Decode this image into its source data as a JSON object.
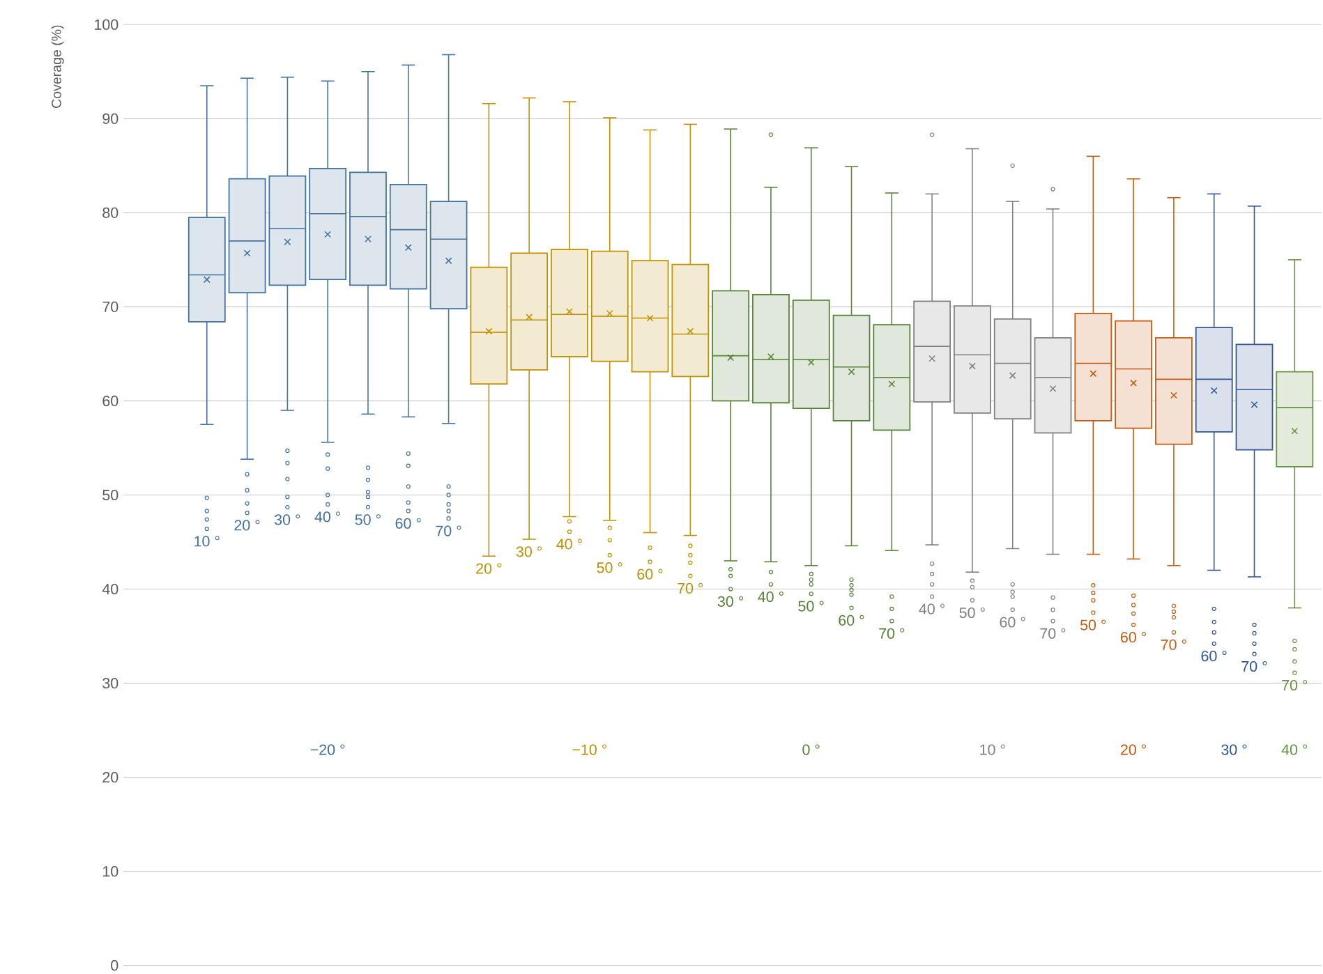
{
  "chart_data": {
    "type": "box",
    "ylabel": "Coverage (%)",
    "ylim": [
      0,
      100
    ],
    "yticks": [
      0,
      10,
      20,
      30,
      40,
      50,
      60,
      70,
      80,
      90,
      100
    ],
    "grid": "y",
    "categories": [
      "10 °",
      "20 °",
      "30 °",
      "40 °",
      "50 °",
      "60 °",
      "70 °",
      "20 °",
      "30 °",
      "40 °",
      "50 °",
      "60 °",
      "70 °",
      "30 °",
      "40 °",
      "50 °",
      "60 °",
      "70 °",
      "40 °",
      "50 °",
      "60 °",
      "70 °",
      "50 °",
      "60 °",
      "70 °",
      "60 °",
      "70 °",
      "70 °"
    ],
    "series": [
      {
        "name": "−20 °",
        "color": "#41719c",
        "boxes": [
          {
            "low": 57.5,
            "q1": 68.4,
            "median": 73.4,
            "q3": 79.5,
            "high": 93.5,
            "mean": 72.9,
            "outliers": [
              49.7,
              48.3,
              47.4,
              46.4
            ]
          },
          {
            "low": 53.8,
            "q1": 71.5,
            "median": 77.0,
            "q3": 83.6,
            "high": 94.3,
            "mean": 75.7,
            "outliers": [
              52.2,
              50.5,
              49.1,
              48.1
            ]
          },
          {
            "low": 59.0,
            "q1": 72.3,
            "median": 78.3,
            "q3": 83.9,
            "high": 94.4,
            "mean": 76.9,
            "outliers": [
              54.7,
              53.4,
              51.7,
              49.8,
              48.7
            ]
          },
          {
            "low": 55.6,
            "q1": 72.9,
            "median": 79.9,
            "q3": 84.7,
            "high": 94.0,
            "mean": 77.7,
            "outliers": [
              54.3,
              52.8,
              50.0,
              49.0
            ]
          },
          {
            "low": 58.6,
            "q1": 72.3,
            "median": 79.6,
            "q3": 84.3,
            "high": 95.0,
            "mean": 77.2,
            "outliers": [
              52.9,
              51.6,
              50.3,
              49.8,
              48.7
            ]
          },
          {
            "low": 58.3,
            "q1": 71.9,
            "median": 78.2,
            "q3": 83.0,
            "high": 95.7,
            "mean": 76.3,
            "outliers": [
              54.4,
              53.1,
              50.9,
              49.2,
              48.3
            ]
          },
          {
            "low": 57.6,
            "q1": 69.8,
            "median": 77.2,
            "q3": 81.2,
            "high": 96.8,
            "mean": 74.9,
            "outliers": [
              50.9,
              50.0,
              49.0,
              48.3,
              47.5
            ]
          },
          null,
          null,
          null,
          null,
          null,
          null,
          null,
          null,
          null,
          null,
          null,
          null,
          null,
          null,
          null,
          null,
          null,
          null,
          null,
          null,
          null
        ]
      },
      {
        "name": "−10 °",
        "color": "#bf9000",
        "boxes": [
          null,
          null,
          null,
          null,
          null,
          null,
          null,
          {
            "low": 43.5,
            "q1": 61.8,
            "median": 67.3,
            "q3": 74.2,
            "high": 91.6,
            "mean": 67.4
          },
          {
            "low": 45.3,
            "q1": 63.3,
            "median": 68.6,
            "q3": 75.7,
            "high": 92.2,
            "mean": 68.9
          },
          {
            "low": 47.7,
            "q1": 64.7,
            "median": 69.2,
            "q3": 76.1,
            "high": 91.8,
            "mean": 69.5,
            "outliers": [
              47.2,
              46.1
            ]
          },
          {
            "low": 47.3,
            "q1": 64.2,
            "median": 69.0,
            "q3": 75.9,
            "high": 90.1,
            "mean": 69.3,
            "outliers": [
              46.5,
              45.2,
              43.6
            ]
          },
          {
            "low": 46.0,
            "q1": 63.1,
            "median": 68.8,
            "q3": 74.9,
            "high": 88.8,
            "mean": 68.8,
            "outliers": [
              44.4,
              42.9
            ]
          },
          {
            "low": 45.7,
            "q1": 62.6,
            "median": 67.1,
            "q3": 74.5,
            "high": 89.4,
            "mean": 67.4,
            "outliers": [
              44.6,
              43.6,
              42.8,
              41.4
            ]
          },
          null,
          null,
          null,
          null,
          null,
          null,
          null,
          null,
          null,
          null,
          null,
          null,
          null,
          null,
          null
        ]
      },
      {
        "name": "0 °",
        "color": "#548235",
        "boxes": [
          null,
          null,
          null,
          null,
          null,
          null,
          null,
          null,
          null,
          null,
          null,
          null,
          null,
          {
            "low": 43.0,
            "q1": 60.0,
            "median": 64.8,
            "q3": 71.7,
            "high": 88.9,
            "mean": 64.6,
            "outliers": [
              42.1,
              41.4,
              40.0
            ]
          },
          {
            "low": 42.9,
            "q1": 59.8,
            "median": 64.4,
            "q3": 71.3,
            "high": 82.7,
            "mean": 64.7,
            "outliers": [
              88.3,
              41.8,
              40.5
            ]
          },
          {
            "low": 42.5,
            "q1": 59.2,
            "median": 64.4,
            "q3": 70.7,
            "high": 86.9,
            "mean": 64.1,
            "outliers": [
              41.6,
              41.0,
              40.5,
              39.5
            ]
          },
          {
            "low": 44.6,
            "q1": 57.9,
            "median": 63.6,
            "q3": 69.1,
            "high": 84.9,
            "mean": 63.1,
            "outliers": [
              41.0,
              40.4,
              39.9,
              39.4,
              38.0
            ]
          },
          {
            "low": 44.1,
            "q1": 56.9,
            "median": 62.5,
            "q3": 68.1,
            "high": 82.1,
            "mean": 61.8,
            "outliers": [
              39.2,
              37.9,
              36.6
            ]
          },
          null,
          null,
          null,
          null,
          null,
          null,
          null,
          null,
          null,
          null
        ]
      },
      {
        "name": "10 °",
        "color": "#7f7f7f",
        "boxes": [
          null,
          null,
          null,
          null,
          null,
          null,
          null,
          null,
          null,
          null,
          null,
          null,
          null,
          null,
          null,
          null,
          null,
          null,
          {
            "low": 44.7,
            "q1": 59.9,
            "median": 65.8,
            "q3": 70.6,
            "high": 82.0,
            "mean": 64.5,
            "outliers": [
              88.3,
              42.7,
              41.6,
              40.5,
              39.2
            ]
          },
          {
            "low": 41.8,
            "q1": 58.7,
            "median": 64.9,
            "q3": 70.1,
            "high": 86.8,
            "mean": 63.7,
            "outliers": [
              40.9,
              40.2,
              38.8
            ]
          },
          {
            "low": 44.3,
            "q1": 58.1,
            "median": 64.0,
            "q3": 68.7,
            "high": 81.2,
            "mean": 62.7,
            "outliers": [
              85.0,
              40.5,
              39.7,
              39.2,
              37.8
            ]
          },
          {
            "low": 43.7,
            "q1": 56.6,
            "median": 62.5,
            "q3": 66.7,
            "high": 80.4,
            "mean": 61.3,
            "outliers": [
              82.5,
              39.1,
              37.8,
              36.6
            ]
          },
          null,
          null,
          null,
          null,
          null,
          null
        ]
      },
      {
        "name": "20 °",
        "color": "#c55a11",
        "boxes": [
          null,
          null,
          null,
          null,
          null,
          null,
          null,
          null,
          null,
          null,
          null,
          null,
          null,
          null,
          null,
          null,
          null,
          null,
          null,
          null,
          null,
          null,
          {
            "low": 43.7,
            "q1": 57.9,
            "median": 64.0,
            "q3": 69.3,
            "high": 86.0,
            "mean": 62.9,
            "outliers": [
              40.4,
              39.6,
              38.8,
              37.5
            ]
          },
          {
            "low": 43.2,
            "q1": 57.1,
            "median": 63.4,
            "q3": 68.5,
            "high": 83.6,
            "mean": 61.9,
            "outliers": [
              39.3,
              38.3,
              37.4,
              36.2
            ]
          },
          {
            "low": 42.5,
            "q1": 55.4,
            "median": 62.3,
            "q3": 66.7,
            "high": 81.6,
            "mean": 60.6,
            "outliers": [
              38.2,
              37.6,
              37.0,
              35.4
            ]
          },
          null,
          null,
          null
        ]
      },
      {
        "name": "30 °",
        "color": "#2f5597",
        "boxes": [
          null,
          null,
          null,
          null,
          null,
          null,
          null,
          null,
          null,
          null,
          null,
          null,
          null,
          null,
          null,
          null,
          null,
          null,
          null,
          null,
          null,
          null,
          null,
          null,
          null,
          {
            "low": 42.0,
            "q1": 56.7,
            "median": 62.3,
            "q3": 67.8,
            "high": 82.0,
            "mean": 61.1,
            "outliers": [
              37.9,
              36.5,
              35.4,
              34.2
            ]
          },
          {
            "low": 41.3,
            "q1": 54.8,
            "median": 61.2,
            "q3": 66.0,
            "high": 80.7,
            "mean": 59.6,
            "outliers": [
              36.2,
              35.3,
              34.2,
              33.1
            ]
          },
          null
        ]
      },
      {
        "name": "40 °",
        "color": "#64943f",
        "boxes": [
          null,
          null,
          null,
          null,
          null,
          null,
          null,
          null,
          null,
          null,
          null,
          null,
          null,
          null,
          null,
          null,
          null,
          null,
          null,
          null,
          null,
          null,
          null,
          null,
          null,
          null,
          null,
          {
            "low": 38.0,
            "q1": 53.0,
            "median": 59.3,
            "q3": 63.1,
            "high": 75.0,
            "mean": 56.8,
            "outliers": [
              34.5,
              33.6,
              32.3,
              31.1
            ]
          }
        ]
      }
    ]
  }
}
